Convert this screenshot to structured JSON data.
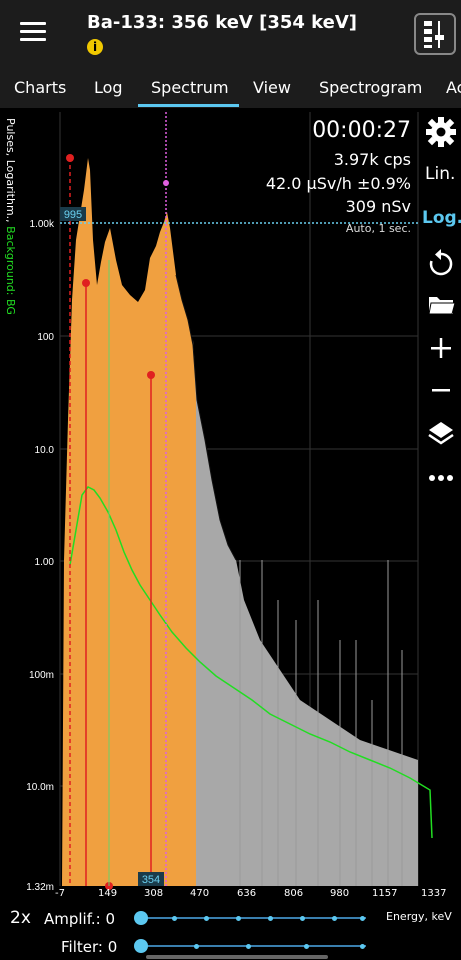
{
  "header": {
    "title": "Ba-133: 356 keV [354 keV]",
    "warning_glyph": "i"
  },
  "tabs": [
    {
      "label": "Charts"
    },
    {
      "label": "Log"
    },
    {
      "label": "Spectrum"
    },
    {
      "label": "View"
    },
    {
      "label": "Spectrogram"
    },
    {
      "label": "Ac"
    }
  ],
  "readouts": {
    "timer": "00:00:27",
    "count_rate": "3.97k cps",
    "dose_rate": "42.0 µSv/h ±0.9%",
    "dose": "309 nSv",
    "mode": "Auto, 1 sec."
  },
  "side": {
    "lin_label": "Lin.",
    "log_label": "Log."
  },
  "axis": {
    "ylabel_main": "Pulses, Logarithm., ",
    "ylabel_bg": "Background: BG",
    "xlabel": "Energy, keV",
    "y_ticks": [
      "1.00k",
      "100",
      "10.0",
      "1.00",
      "100m",
      "10.0m",
      "1.32m"
    ],
    "x_ticks": [
      "-7",
      "149",
      "308",
      "470",
      "636",
      "806",
      "980",
      "1157",
      "1337"
    ],
    "cursor_y_label": "995",
    "cursor_x_label": "354"
  },
  "controls": {
    "zoom": "2x",
    "amplif_label": "Amplif.: 0",
    "filter_label": "Filter: 0"
  },
  "colors": {
    "accent": "#5cc8f0",
    "spectrum_fill": "#f0a040",
    "spectrum_tail": "#a8a8a8",
    "background_trace": "#22dd22",
    "marker": "#e02020",
    "cursor": "#e060e0"
  }
}
